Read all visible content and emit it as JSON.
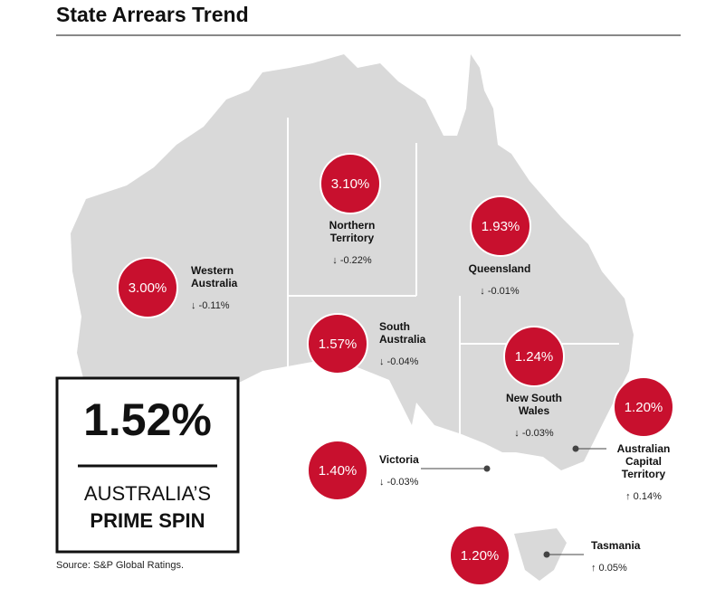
{
  "title": "State Arrears Trend",
  "states": [
    {
      "name": [
        "Western",
        "Australia"
      ],
      "rate": "3.00%",
      "change": "↓ -0.11%"
    },
    {
      "name": [
        "Northern",
        "Territory"
      ],
      "rate": "3.10%",
      "change": "↓ -0.22%"
    },
    {
      "name": [
        "Queensland"
      ],
      "rate": "1.93%",
      "change": "↓ -0.01%"
    },
    {
      "name": [
        "South",
        "Australia"
      ],
      "rate": "1.57%",
      "change": "↓ -0.04%"
    },
    {
      "name": [
        "New South",
        "Wales"
      ],
      "rate": "1.24%",
      "change": "↓ -0.03%"
    },
    {
      "name": [
        "Australian",
        "Capital",
        "Territory"
      ],
      "rate": "1.20%",
      "change": "↑ 0.14%"
    },
    {
      "name": [
        "Victoria"
      ],
      "rate": "1.40%",
      "change": "↓ -0.03%"
    },
    {
      "name": [
        "Tasmania"
      ],
      "rate": "1.20%",
      "change": "↑ 0.05%"
    }
  ],
  "national": {
    "rate": "1.52%",
    "label": [
      "AUSTRALIA’S",
      "PRIME SPIN"
    ]
  },
  "source": "Source: S&P Global Ratings."
}
